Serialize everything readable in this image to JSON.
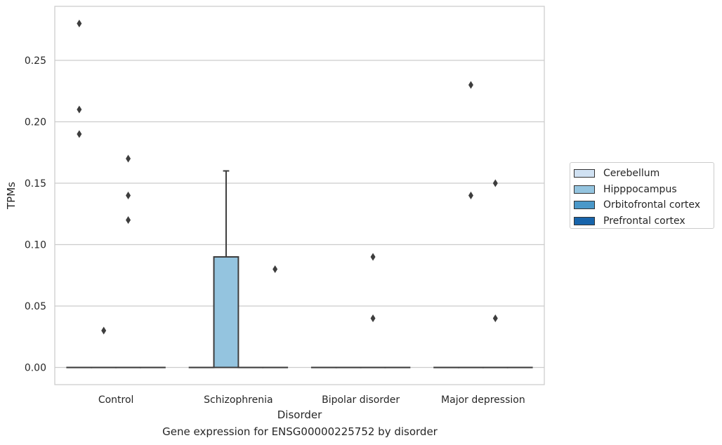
{
  "chart_data": {
    "type": "box",
    "caption": "Gene expression for ENSG00000225752 by disorder",
    "xlabel": "Disorder",
    "ylabel": "TPMs",
    "ylim": [
      -0.014,
      0.294
    ],
    "yticks": [
      0.0,
      0.05,
      0.1,
      0.15,
      0.2,
      0.25
    ],
    "ytick_labels": [
      "0.00",
      "0.05",
      "0.10",
      "0.15",
      "0.20",
      "0.25"
    ],
    "grid": "horizontal",
    "legend_position": "right",
    "categories": [
      "Control",
      "Schizophrenia",
      "Bipolar disorder",
      "Major depression"
    ],
    "series": [
      {
        "name": "Cerebellum",
        "color": "#d0e1f2",
        "boxes": [
          {
            "q1": 0,
            "median": 0,
            "q3": 0,
            "whisker_low": 0,
            "whisker_high": 0,
            "outliers": [
              0.19,
              0.21,
              0.28
            ]
          },
          {
            "q1": 0,
            "median": 0,
            "q3": 0,
            "whisker_low": 0,
            "whisker_high": 0,
            "outliers": []
          },
          {
            "q1": 0,
            "median": 0,
            "q3": 0,
            "whisker_low": 0,
            "whisker_high": 0,
            "outliers": []
          },
          {
            "q1": 0,
            "median": 0,
            "q3": 0,
            "whisker_low": 0,
            "whisker_high": 0,
            "outliers": []
          }
        ]
      },
      {
        "name": "Hipppocampus",
        "color": "#94c4df",
        "boxes": [
          {
            "q1": 0,
            "median": 0,
            "q3": 0,
            "whisker_low": 0,
            "whisker_high": 0,
            "outliers": [
              0.03
            ]
          },
          {
            "q1": 0,
            "median": 0,
            "q3": 0.09,
            "whisker_low": 0,
            "whisker_high": 0.16,
            "outliers": []
          },
          {
            "q1": 0,
            "median": 0,
            "q3": 0,
            "whisker_low": 0,
            "whisker_high": 0,
            "outliers": []
          },
          {
            "q1": 0,
            "median": 0,
            "q3": 0,
            "whisker_low": 0,
            "whisker_high": 0,
            "outliers": [
              0.14,
              0.23
            ]
          }
        ]
      },
      {
        "name": "Orbitofrontal cortex",
        "color": "#4a98c9",
        "boxes": [
          {
            "q1": 0,
            "median": 0,
            "q3": 0,
            "whisker_low": 0,
            "whisker_high": 0,
            "outliers": [
              0.12,
              0.14,
              0.17
            ]
          },
          {
            "q1": 0,
            "median": 0,
            "q3": 0,
            "whisker_low": 0,
            "whisker_high": 0,
            "outliers": []
          },
          {
            "q1": 0,
            "median": 0,
            "q3": 0,
            "whisker_low": 0,
            "whisker_high": 0,
            "outliers": [
              0.04,
              0.09
            ]
          },
          {
            "q1": 0,
            "median": 0,
            "q3": 0,
            "whisker_low": 0,
            "whisker_high": 0,
            "outliers": [
              0.04,
              0.15
            ]
          }
        ]
      },
      {
        "name": "Prefrontal cortex",
        "color": "#1764ab",
        "boxes": [
          {
            "q1": 0,
            "median": 0,
            "q3": 0,
            "whisker_low": 0,
            "whisker_high": 0,
            "outliers": []
          },
          {
            "q1": 0,
            "median": 0,
            "q3": 0,
            "whisker_low": 0,
            "whisker_high": 0,
            "outliers": [
              0.08
            ]
          },
          {
            "q1": 0,
            "median": 0,
            "q3": 0,
            "whisker_low": 0,
            "whisker_high": 0,
            "outliers": []
          },
          {
            "q1": 0,
            "median": 0,
            "q3": 0,
            "whisker_low": 0,
            "whisker_high": 0,
            "outliers": []
          }
        ]
      }
    ]
  }
}
